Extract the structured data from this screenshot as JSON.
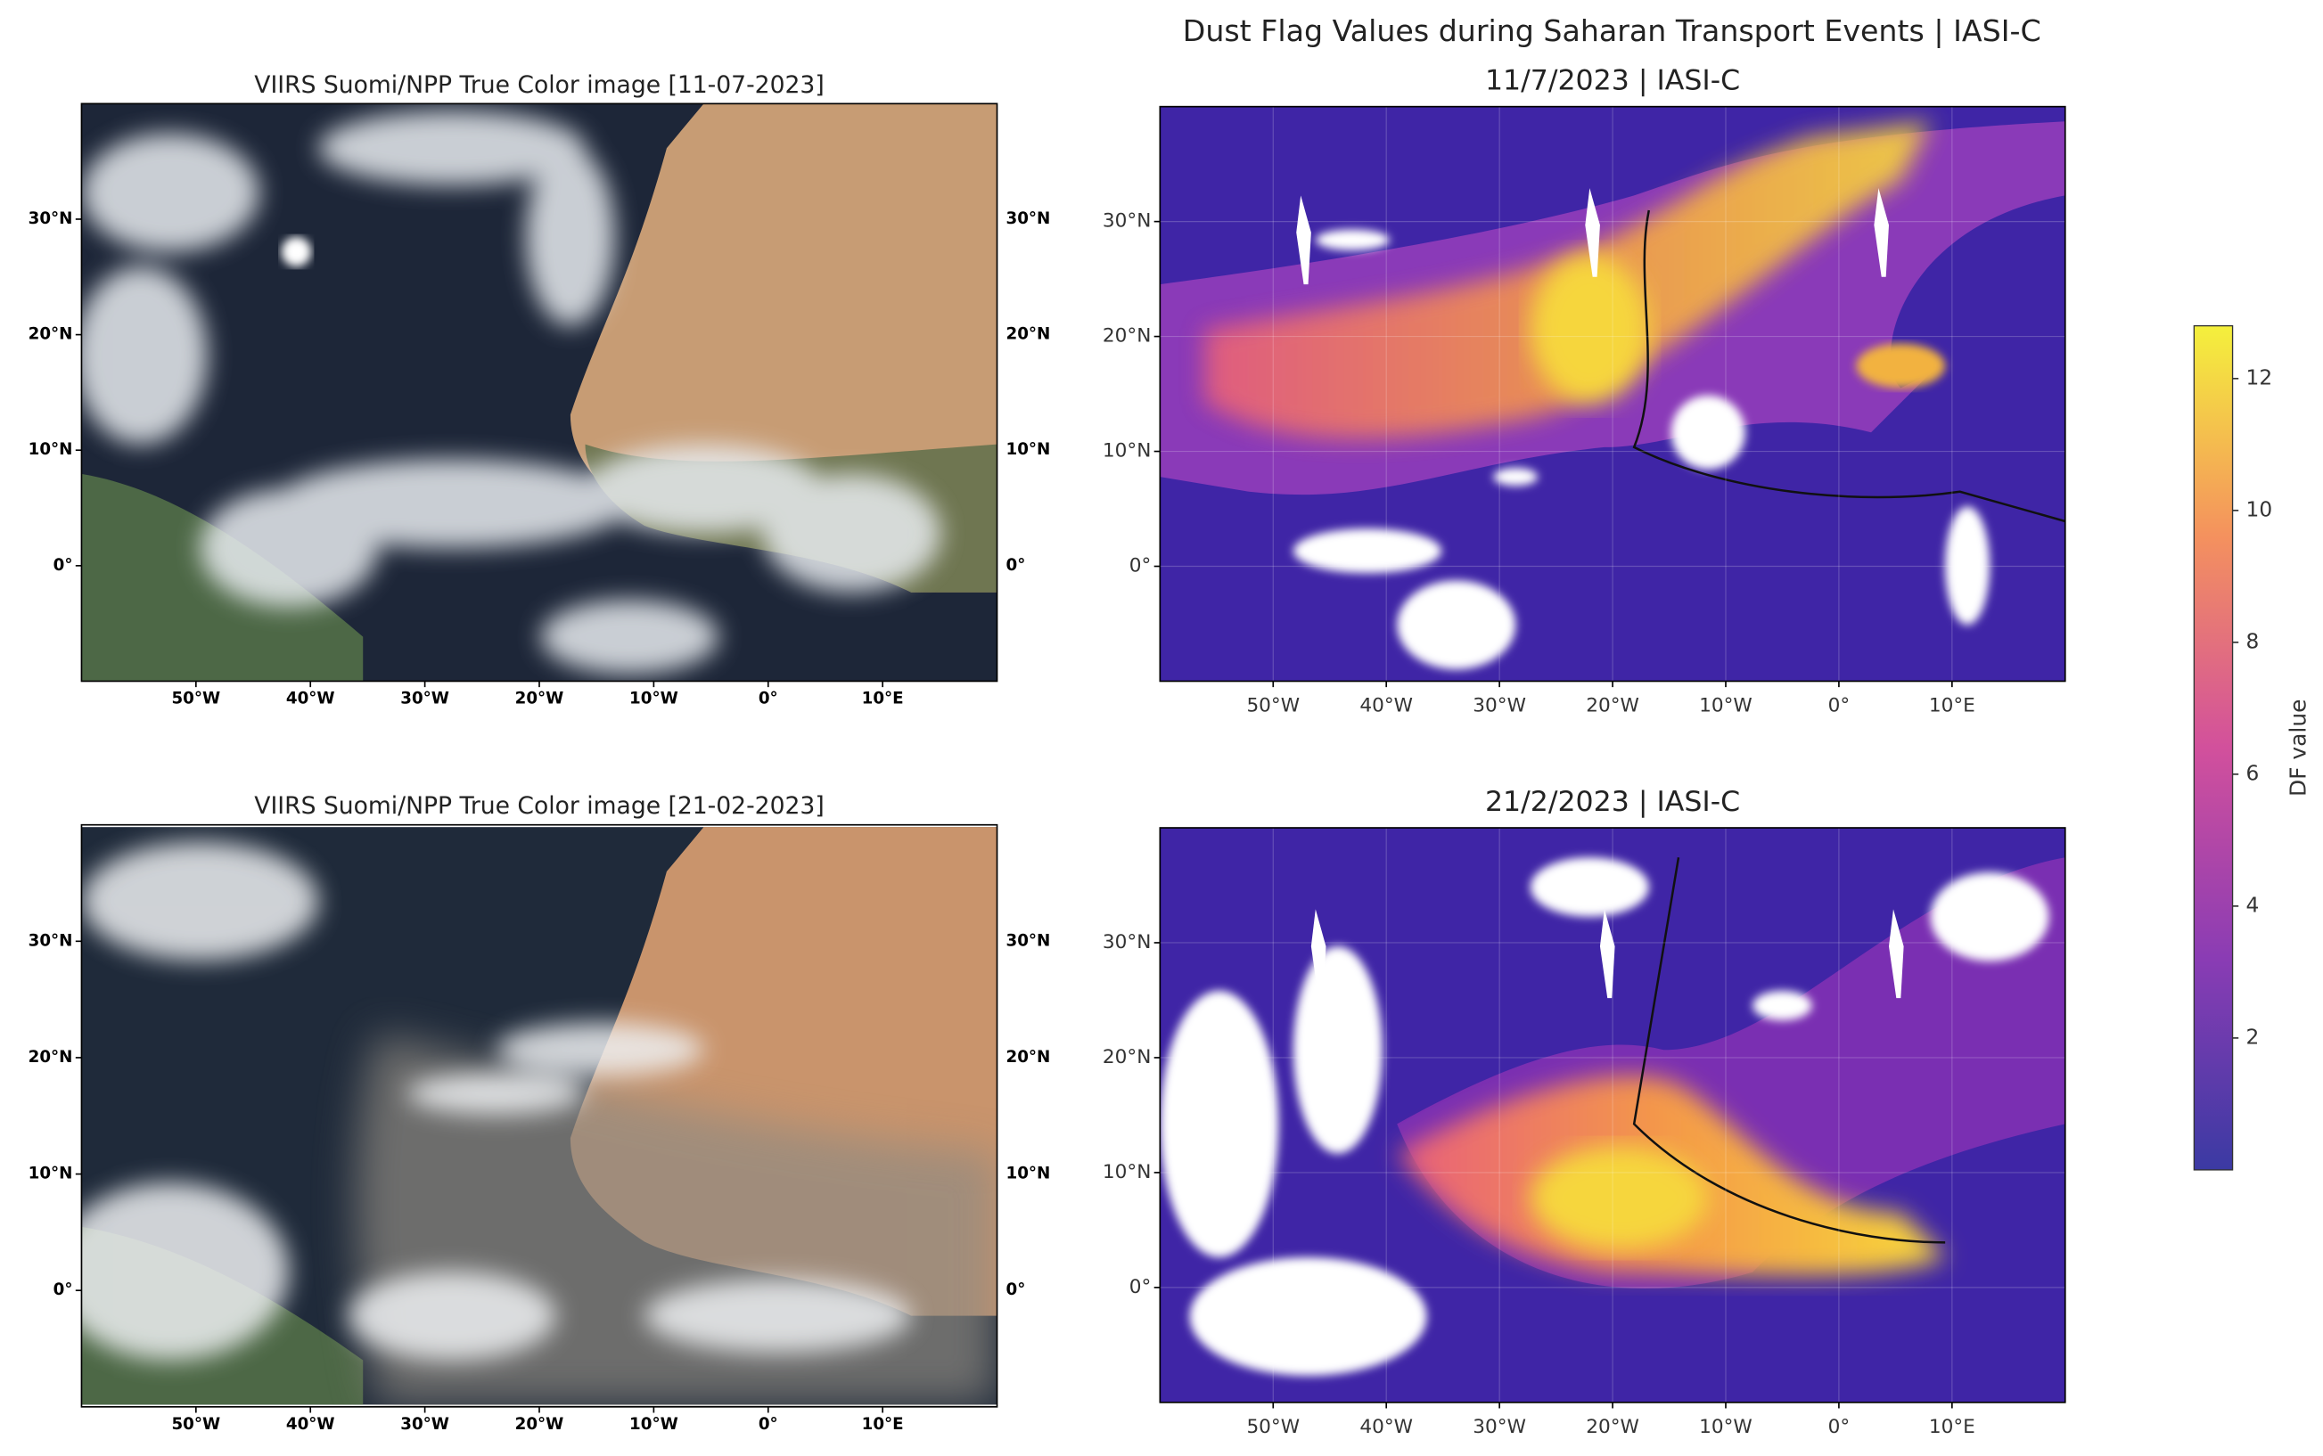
{
  "title": "Dust Flag Values during Saharan Transport Events | IASI-C",
  "panels": [
    {
      "title": "VIIRS Suomi/NPP True Color image [11-07-2023]"
    },
    {
      "title": "VIIRS Suomi/NPP True Color image [21-02-2023]"
    },
    {
      "title": "11/7/2023 | IASI-C"
    },
    {
      "title": "21/2/2023 | IASI-C"
    }
  ],
  "map": {
    "xlim": [
      -60,
      20
    ],
    "ylim": [
      -10,
      40
    ],
    "xticks": [
      {
        "value": -50,
        "label": "50°W"
      },
      {
        "value": -40,
        "label": "40°W"
      },
      {
        "value": -30,
        "label": "30°W"
      },
      {
        "value": -20,
        "label": "20°W"
      },
      {
        "value": -10,
        "label": "10°W"
      },
      {
        "value": 0,
        "label": "0°"
      },
      {
        "value": 10,
        "label": "10°E"
      }
    ],
    "yticks": [
      {
        "value": 0,
        "label": "0°"
      },
      {
        "value": 10,
        "label": "10°N"
      },
      {
        "value": 20,
        "label": "20°N"
      },
      {
        "value": 30,
        "label": "30°N"
      }
    ]
  },
  "colorbar": {
    "label": "DF value",
    "lim": [
      0,
      12.8
    ],
    "ticks": [
      2,
      4,
      6,
      8,
      10,
      12
    ]
  }
}
